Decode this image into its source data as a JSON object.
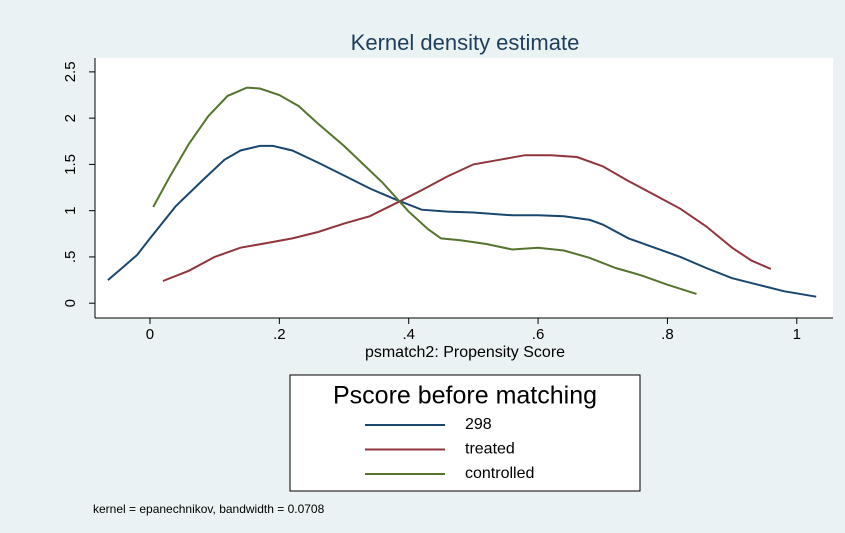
{
  "chart_data": {
    "type": "line",
    "title": "Kernel density estimate",
    "x_label": "psmatch2: Propensity Score",
    "note": "kernel = epanechnikov, bandwidth = 0.0708",
    "xlim": [
      -0.085,
      1.056
    ],
    "ylim": [
      -0.16,
      2.65
    ],
    "xticks": [
      0,
      {
        "value": 0.2,
        "label": ".2"
      },
      {
        "value": 0.4,
        "label": ".4"
      },
      {
        "value": 0.6,
        "label": ".6"
      },
      {
        "value": 0.8,
        "label": ".8"
      },
      1
    ],
    "yticks": [
      0,
      {
        "value": 0.5,
        "label": ".5"
      },
      1,
      1.5,
      2,
      2.5
    ],
    "grid": false,
    "legend": {
      "title": "Pscore before matching",
      "position": "bottom"
    },
    "series": [
      {
        "name": "298",
        "color": "#1a476f",
        "x": [
          -0.065,
          -0.04,
          -0.02,
          0,
          0.04,
          0.08,
          0.115,
          0.14,
          0.17,
          0.19,
          0.22,
          0.26,
          0.3,
          0.34,
          0.38,
          0.42,
          0.46,
          0.5,
          0.56,
          0.6,
          0.64,
          0.68,
          0.7,
          0.74,
          0.78,
          0.82,
          0.86,
          0.9,
          0.94,
          0.98,
          1.03
        ],
        "values": [
          0.25,
          0.4,
          0.52,
          0.7,
          1.05,
          1.32,
          1.55,
          1.65,
          1.7,
          1.7,
          1.65,
          1.52,
          1.38,
          1.24,
          1.12,
          1.01,
          0.99,
          0.98,
          0.95,
          0.95,
          0.94,
          0.9,
          0.85,
          0.7,
          0.6,
          0.5,
          0.38,
          0.27,
          0.2,
          0.13,
          0.07
        ]
      },
      {
        "name": "treated",
        "color": "#90353b",
        "x": [
          0.02,
          0.06,
          0.1,
          0.14,
          0.18,
          0.22,
          0.26,
          0.3,
          0.34,
          0.38,
          0.42,
          0.46,
          0.5,
          0.54,
          0.58,
          0.62,
          0.66,
          0.7,
          0.74,
          0.78,
          0.82,
          0.86,
          0.9,
          0.93,
          0.96
        ],
        "values": [
          0.24,
          0.35,
          0.5,
          0.6,
          0.65,
          0.7,
          0.77,
          0.86,
          0.94,
          1.08,
          1.22,
          1.37,
          1.5,
          1.55,
          1.6,
          1.6,
          1.58,
          1.48,
          1.32,
          1.17,
          1.02,
          0.83,
          0.6,
          0.46,
          0.37
        ]
      },
      {
        "name": "controlled",
        "color": "#55752f",
        "x": [
          0.005,
          0.03,
          0.06,
          0.09,
          0.12,
          0.15,
          0.17,
          0.2,
          0.23,
          0.26,
          0.3,
          0.33,
          0.36,
          0.4,
          0.43,
          0.45,
          0.48,
          0.52,
          0.56,
          0.6,
          0.64,
          0.68,
          0.72,
          0.76,
          0.8,
          0.845
        ],
        "values": [
          1.04,
          1.36,
          1.72,
          2.02,
          2.24,
          2.33,
          2.32,
          2.25,
          2.13,
          1.94,
          1.7,
          1.5,
          1.3,
          0.99,
          0.8,
          0.7,
          0.68,
          0.64,
          0.58,
          0.6,
          0.57,
          0.49,
          0.38,
          0.3,
          0.2,
          0.1
        ]
      }
    ]
  }
}
